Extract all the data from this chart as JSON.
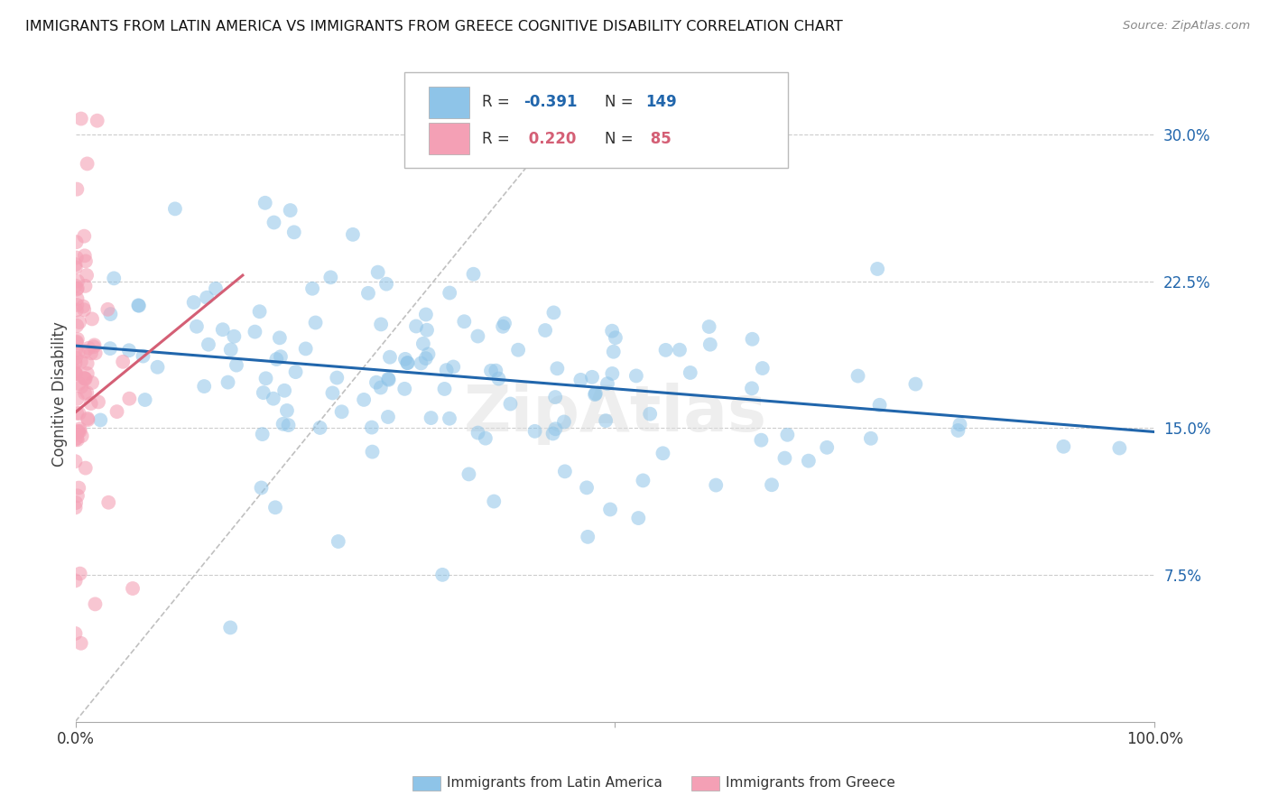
{
  "title": "IMMIGRANTS FROM LATIN AMERICA VS IMMIGRANTS FROM GREECE COGNITIVE DISABILITY CORRELATION CHART",
  "source": "Source: ZipAtlas.com",
  "ylabel": "Cognitive Disability",
  "yticks_right": [
    0.075,
    0.15,
    0.225,
    0.3
  ],
  "ytick_labels_right": [
    "7.5%",
    "15.0%",
    "22.5%",
    "30.0%"
  ],
  "legend_label1": "Immigrants from Latin America",
  "legend_label2": "Immigrants from Greece",
  "blue_color": "#8ec4e8",
  "pink_color": "#f4a0b5",
  "blue_line_color": "#2166ac",
  "pink_line_color": "#d45f75",
  "xlim": [
    0,
    1.0
  ],
  "ylim": [
    0.0,
    0.335
  ],
  "blue_trend_x": [
    0.0,
    1.0
  ],
  "blue_trend_y": [
    0.192,
    0.148
  ],
  "pink_trend_x": [
    0.0,
    0.155
  ],
  "pink_trend_y": [
    0.158,
    0.228
  ],
  "diag_line_x": [
    0.0,
    0.45
  ],
  "diag_line_y": [
    0.0,
    0.305
  ],
  "xticks": [
    0.0,
    0.5,
    1.0
  ],
  "xtick_labels": [
    "0.0%",
    "",
    "100.0%"
  ],
  "watermark": "ZipAtlas"
}
